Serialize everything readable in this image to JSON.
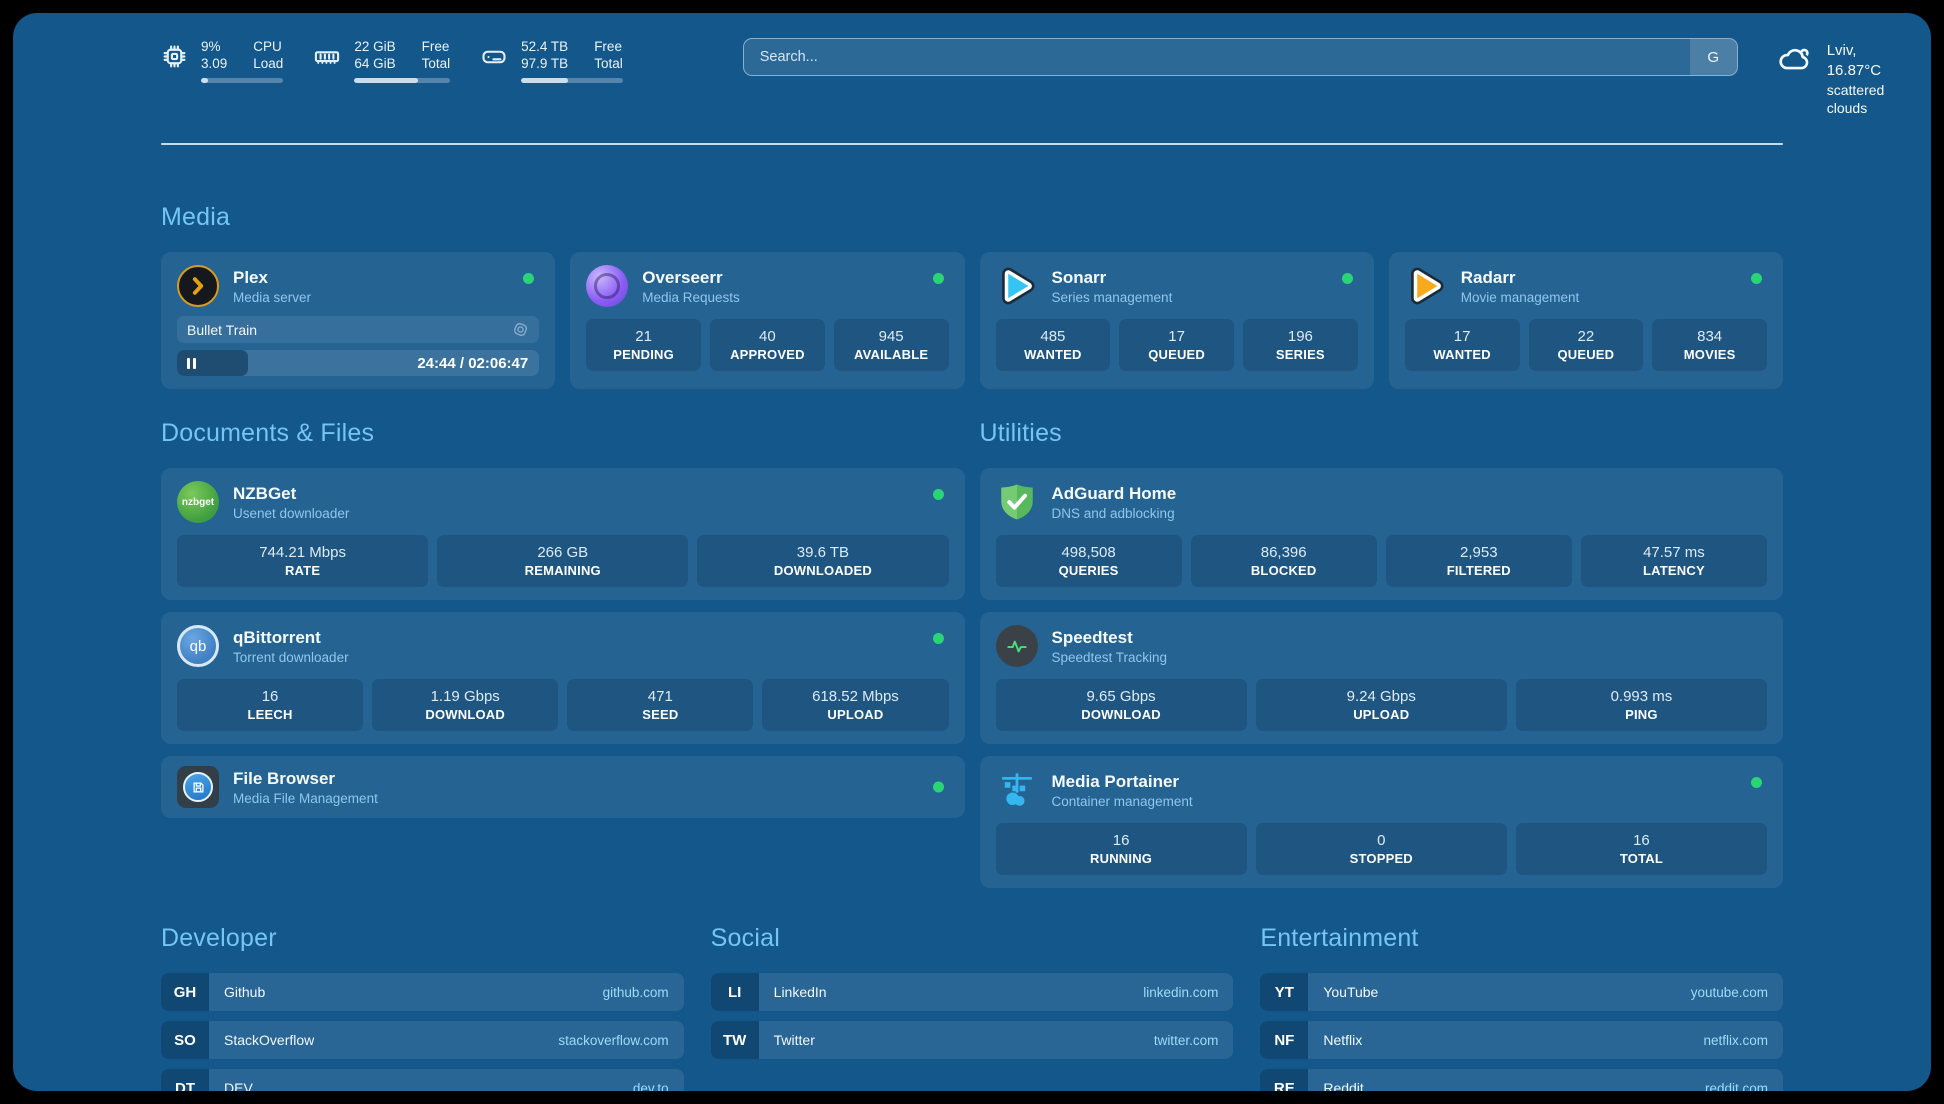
{
  "colors": {
    "status_online": "#2ad576",
    "heading_blue": "#74c5f4",
    "background": "#14578b"
  },
  "topbar": {
    "cpu": {
      "values": [
        "9%",
        "3.09"
      ],
      "labels": [
        "CPU",
        "Load"
      ],
      "progress_pct": 9
    },
    "memory": {
      "values": [
        "22 GiB",
        "64 GiB"
      ],
      "labels": [
        "Free",
        "Total"
      ],
      "progress_pct": 66
    },
    "disk": {
      "values": [
        "52.4 TB",
        "97.9 TB"
      ],
      "labels": [
        "Free",
        "Total"
      ],
      "progress_pct": 46
    },
    "search": {
      "placeholder": "Search...",
      "button_label": "G"
    },
    "weather": {
      "summary": "Lviv, 16.87°C",
      "condition": "scattered clouds"
    }
  },
  "media": {
    "heading": "Media",
    "plex": {
      "title": "Plex",
      "subtitle": "Media server",
      "now_playing": "Bullet Train",
      "time_display": "24:44 / 02:06:47",
      "progress_pct": 19.5
    },
    "overseerr": {
      "title": "Overseerr",
      "subtitle": "Media Requests",
      "stats": [
        {
          "value": "21",
          "label": "PENDING"
        },
        {
          "value": "40",
          "label": "APPROVED"
        },
        {
          "value": "945",
          "label": "AVAILABLE"
        }
      ]
    },
    "sonarr": {
      "title": "Sonarr",
      "subtitle": "Series management",
      "stats": [
        {
          "value": "485",
          "label": "WANTED"
        },
        {
          "value": "17",
          "label": "QUEUED"
        },
        {
          "value": "196",
          "label": "SERIES"
        }
      ]
    },
    "radarr": {
      "title": "Radarr",
      "subtitle": "Movie management",
      "stats": [
        {
          "value": "17",
          "label": "WANTED"
        },
        {
          "value": "22",
          "label": "QUEUED"
        },
        {
          "value": "834",
          "label": "MOVIES"
        }
      ]
    }
  },
  "documents": {
    "heading": "Documents & Files",
    "nzbget": {
      "title": "NZBGet",
      "subtitle": "Usenet downloader",
      "icon_text": "nzbget",
      "stats": [
        {
          "value": "744.21 Mbps",
          "label": "RATE"
        },
        {
          "value": "266 GB",
          "label": "REMAINING"
        },
        {
          "value": "39.6 TB",
          "label": "DOWNLOADED"
        }
      ]
    },
    "qbittorrent": {
      "title": "qBittorrent",
      "subtitle": "Torrent downloader",
      "icon_text": "qb",
      "stats": [
        {
          "value": "16",
          "label": "LEECH"
        },
        {
          "value": "1.19 Gbps",
          "label": "DOWNLOAD"
        },
        {
          "value": "471",
          "label": "SEED"
        },
        {
          "value": "618.52 Mbps",
          "label": "UPLOAD"
        }
      ]
    },
    "filebrowser": {
      "title": "File Browser",
      "subtitle": "Media File Management"
    }
  },
  "utilities": {
    "heading": "Utilities",
    "adguard": {
      "title": "AdGuard Home",
      "subtitle": "DNS and adblocking",
      "stats": [
        {
          "value": "498,508",
          "label": "QUERIES"
        },
        {
          "value": "86,396",
          "label": "BLOCKED"
        },
        {
          "value": "2,953",
          "label": "FILTERED"
        },
        {
          "value": "47.57 ms",
          "label": "LATENCY"
        }
      ]
    },
    "speedtest": {
      "title": "Speedtest",
      "subtitle": "Speedtest Tracking",
      "stats": [
        {
          "value": "9.65 Gbps",
          "label": "DOWNLOAD"
        },
        {
          "value": "9.24 Gbps",
          "label": "UPLOAD"
        },
        {
          "value": "0.993 ms",
          "label": "PING"
        }
      ]
    },
    "portainer": {
      "title": "Media Portainer",
      "subtitle": "Container management",
      "stats": [
        {
          "value": "16",
          "label": "RUNNING"
        },
        {
          "value": "0",
          "label": "STOPPED"
        },
        {
          "value": "16",
          "label": "TOTAL"
        }
      ]
    }
  },
  "links": {
    "developer": {
      "heading": "Developer",
      "items": [
        {
          "abbr": "GH",
          "name": "Github",
          "url": "github.com"
        },
        {
          "abbr": "SO",
          "name": "StackOverflow",
          "url": "stackoverflow.com"
        },
        {
          "abbr": "DT",
          "name": "DEV",
          "url": "dev.to"
        }
      ]
    },
    "social": {
      "heading": "Social",
      "items": [
        {
          "abbr": "LI",
          "name": "LinkedIn",
          "url": "linkedin.com"
        },
        {
          "abbr": "TW",
          "name": "Twitter",
          "url": "twitter.com"
        }
      ]
    },
    "entertainment": {
      "heading": "Entertainment",
      "items": [
        {
          "abbr": "YT",
          "name": "YouTube",
          "url": "youtube.com"
        },
        {
          "abbr": "NF",
          "name": "Netflix",
          "url": "netflix.com"
        },
        {
          "abbr": "RE",
          "name": "Reddit",
          "url": "reddit.com"
        }
      ]
    }
  }
}
